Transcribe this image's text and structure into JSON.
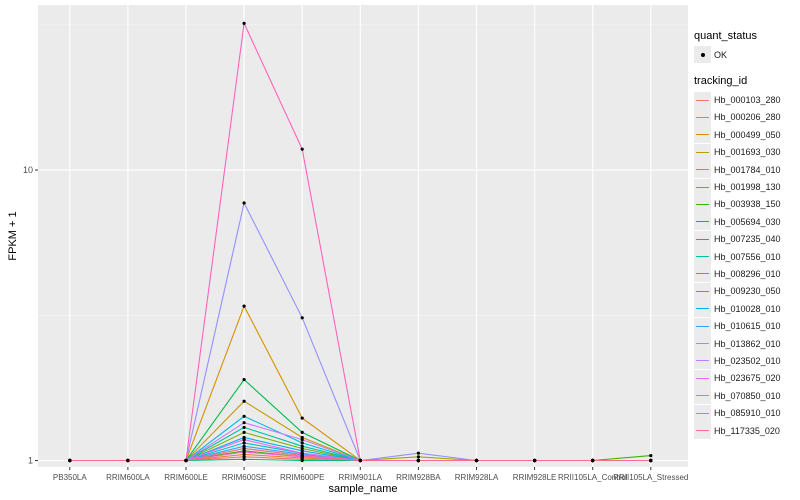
{
  "chart_data": {
    "type": "line",
    "xlabel": "sample_name",
    "ylabel": "FPKM + 1",
    "y_scale": "log10",
    "ylim": [
      0.95,
      37
    ],
    "y_ticks": [
      {
        "value": 1,
        "label": "1"
      },
      {
        "value": 10,
        "label": "10"
      }
    ],
    "grid": true,
    "legend_position": "right",
    "categories": [
      "PB350LA",
      "RRIM600LA",
      "RRIM600LE",
      "RRIM600SE",
      "RRIM600PE",
      "RRIM901LA",
      "RRIM928BA",
      "RRIM928LA",
      "RRIM928LE",
      "RRII105LA_Control",
      "RRII105LA_Stressed"
    ],
    "point_legend": {
      "title": "quant_status",
      "label": "OK"
    },
    "series_legend_title": "tracking_id",
    "series": [
      {
        "name": "Hb_000103_280",
        "color": "#F8766D",
        "values": [
          1,
          1,
          1,
          1.03,
          1.01,
          1,
          1,
          1,
          1,
          1,
          1
        ]
      },
      {
        "name": "Hb_000206_280",
        "color": "#EA8331",
        "values": [
          1,
          1,
          1,
          1.05,
          1.02,
          1,
          1,
          1,
          1,
          1,
          1
        ]
      },
      {
        "name": "Hb_000499_050",
        "color": "#D89000",
        "values": [
          1,
          1,
          1,
          3.4,
          1.4,
          1,
          1,
          1,
          1,
          1,
          1
        ]
      },
      {
        "name": "Hb_001693_030",
        "color": "#C09B00",
        "values": [
          1,
          1,
          1,
          1.6,
          1.2,
          1,
          1,
          1,
          1,
          1,
          1
        ]
      },
      {
        "name": "Hb_001784_010",
        "color": "#A3A500",
        "values": [
          1,
          1,
          1,
          1.1,
          1.04,
          1,
          1.03,
          1,
          1,
          1,
          1
        ]
      },
      {
        "name": "Hb_001998_130",
        "color": "#7CAE00",
        "values": [
          1,
          1,
          1,
          1.25,
          1.1,
          1,
          1,
          1,
          1,
          1,
          1
        ]
      },
      {
        "name": "Hb_003938_150",
        "color": "#39B600",
        "values": [
          1,
          1,
          1,
          1.08,
          1.03,
          1,
          1,
          1,
          1,
          1,
          1.04
        ]
      },
      {
        "name": "Hb_005694_030",
        "color": "#00BB4E",
        "values": [
          1,
          1,
          1,
          1.9,
          1.25,
          1,
          1,
          1,
          1,
          1,
          1
        ]
      },
      {
        "name": "Hb_007235_040",
        "color": "#00BF7D",
        "values": [
          1,
          1,
          1,
          1.01,
          1.0,
          1,
          1,
          1,
          1,
          1,
          1
        ]
      },
      {
        "name": "Hb_007556_010",
        "color": "#00C1A3",
        "values": [
          1,
          1,
          1,
          1.3,
          1.12,
          1,
          1,
          1,
          1,
          1,
          1
        ]
      },
      {
        "name": "Hb_008296_010",
        "color": "#00BFC4",
        "values": [
          1,
          1,
          1,
          1.15,
          1.06,
          1,
          1,
          1,
          1,
          1,
          1
        ]
      },
      {
        "name": "Hb_009230_050",
        "color": "#00BAE0",
        "values": [
          1,
          1,
          1,
          1.42,
          1.15,
          1,
          1,
          1,
          1,
          1,
          1
        ]
      },
      {
        "name": "Hb_010028_010",
        "color": "#00B0F6",
        "values": [
          1,
          1,
          1,
          1.2,
          1.08,
          1,
          1,
          1,
          1,
          1,
          1
        ]
      },
      {
        "name": "Hb_010615_010",
        "color": "#35A2FF",
        "values": [
          1,
          1,
          1,
          1.12,
          1.05,
          1,
          1,
          1,
          1,
          1,
          1
        ]
      },
      {
        "name": "Hb_013862_010",
        "color": "#9590FF",
        "values": [
          1,
          1,
          1,
          7.7,
          3.1,
          1,
          1.06,
          1,
          1,
          1,
          1
        ]
      },
      {
        "name": "Hb_023502_010",
        "color": "#C77CFF",
        "values": [
          1,
          1,
          1,
          1.35,
          1.18,
          1,
          1,
          1,
          1,
          1,
          1
        ]
      },
      {
        "name": "Hb_023675_020",
        "color": "#E76BF3",
        "values": [
          1,
          1,
          1,
          1.18,
          1.06,
          1,
          1,
          1,
          1,
          1,
          1
        ]
      },
      {
        "name": "Hb_070850_010",
        "color": "#FA62DB",
        "values": [
          1,
          1,
          1,
          1.07,
          1.03,
          1,
          1,
          1,
          1,
          1,
          1
        ]
      },
      {
        "name": "Hb_085910_010",
        "color": "#FF62BC",
        "values": [
          1,
          1,
          1,
          32,
          11.8,
          1,
          1,
          1,
          1,
          1,
          1
        ]
      },
      {
        "name": "Hb_117335_020",
        "color": "#FF6C91",
        "values": [
          1,
          1,
          1,
          1.1,
          1.04,
          1,
          1,
          1,
          1,
          1,
          1
        ]
      }
    ]
  }
}
